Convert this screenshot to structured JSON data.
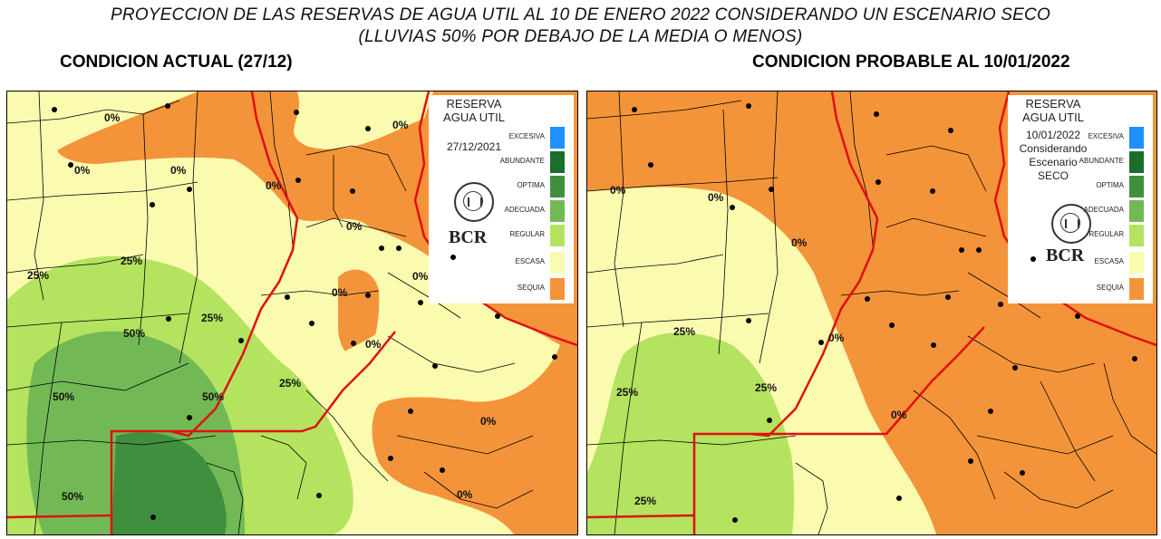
{
  "title_line1": "PROYECCION DE LAS RESERVAS DE AGUA UTIL AL 10 DE ENERO 2022 CONSIDERANDO UN ESCENARIO SECO",
  "title_line2": "(LLUVIAS 50% POR DEBAJO DE LA MEDIA O MENOS)",
  "left": {
    "heading": "CONDICION ACTUAL (27/12)",
    "legend_title_1": "RESERVA",
    "legend_title_2": "AGUA UTIL",
    "legend_date": "27/12/2021",
    "legend_logo": "BCR",
    "legend_seal_text": "BOLSA DE COMERCIO DE ROSARIO",
    "labels": [
      "0%",
      "0%",
      "0%",
      "0%",
      "0%",
      "0%",
      "0%",
      "0%",
      "0%",
      "0%",
      "0%",
      "25%",
      "25%",
      "25%",
      "25%",
      "50%",
      "50%",
      "50%",
      "50%"
    ]
  },
  "right": {
    "heading": "CONDICION PROBABLE AL 10/01/2022",
    "legend_title_1": "RESERVA",
    "legend_title_2": "AGUA UTIL",
    "legend_date": "10/01/2022",
    "legend_note_1": "Considerando",
    "legend_note_2": "Escenario",
    "legend_note_3": "SECO",
    "legend_logo": "BCR",
    "legend_seal_text": "BOLSA DE COMERCIO DE ROSARIO",
    "labels": [
      "0%",
      "0%",
      "0%",
      "0%",
      "0%",
      "25%",
      "25%",
      "25%",
      "25%"
    ]
  },
  "legend_items": [
    {
      "label": "EXCESIVA",
      "color": "#1e90ff"
    },
    {
      "label": "ABUNDANTE",
      "color": "#1a6e2e"
    },
    {
      "label": "OPTIMA",
      "color": "#3f8f3f"
    },
    {
      "label": "ADECUADA",
      "color": "#72b956"
    },
    {
      "label": "REGULAR",
      "color": "#b4e35f"
    },
    {
      "label": "ESCASA",
      "color": "#fbfbb0"
    },
    {
      "label": "SEQUIA",
      "color": "#f4943a"
    }
  ]
}
